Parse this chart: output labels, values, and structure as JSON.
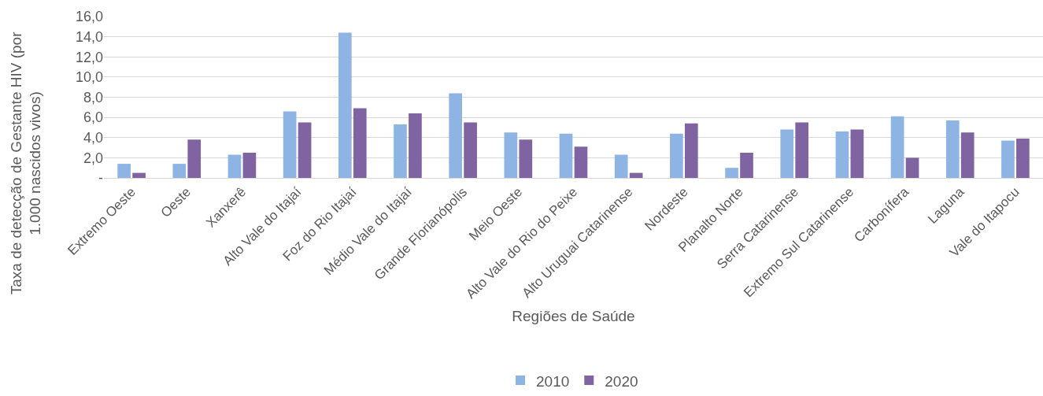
{
  "chart_data": {
    "type": "bar",
    "xlabel": "Regiões de Saúde",
    "ylabel": "Taxa de detecção de Gestante HIV (por 1.000 nascidos vivos)",
    "categories": [
      "Extremo Oeste",
      "Oeste",
      "Xanxerê",
      "Alto Vale do Itajaí",
      "Foz do Rio Itajaí",
      "Médio Vale do Itajaí",
      "Grande Florianópolis",
      "Meio Oeste",
      "Alto Vale do Rio do Peixe",
      "Alto Uruguai Catarinense",
      "Nordeste",
      "Planalto Norte",
      "Serra Catarinense",
      "Extremo Sul Catarinense",
      "Carbonífera",
      "Laguna",
      "Vale do Itapocu"
    ],
    "series": [
      {
        "name": "2010",
        "color": "#8eb4e3",
        "values": [
          1.4,
          1.4,
          2.3,
          6.6,
          14.4,
          5.3,
          8.4,
          4.5,
          4.4,
          2.3,
          4.4,
          1.0,
          4.8,
          4.6,
          6.1,
          5.7,
          3.7
        ]
      },
      {
        "name": "2020",
        "color": "#8064a2",
        "values": [
          0.5,
          3.8,
          2.5,
          5.5,
          6.9,
          6.4,
          5.5,
          3.8,
          3.1,
          0.5,
          5.4,
          2.5,
          5.5,
          4.8,
          2.0,
          4.5,
          3.9
        ]
      }
    ],
    "ylim": [
      0,
      16
    ],
    "yticks": [
      {
        "value": 0,
        "label": "-"
      },
      {
        "value": 2,
        "label": "2,0"
      },
      {
        "value": 4,
        "label": "4,0"
      },
      {
        "value": 6,
        "label": "6,0"
      },
      {
        "value": 8,
        "label": "8,0"
      },
      {
        "value": 10,
        "label": "10,0"
      },
      {
        "value": 12,
        "label": "12,0"
      },
      {
        "value": 14,
        "label": "14,0"
      },
      {
        "value": 16,
        "label": "16,0"
      }
    ],
    "grid": "y",
    "legend": "bottom"
  }
}
